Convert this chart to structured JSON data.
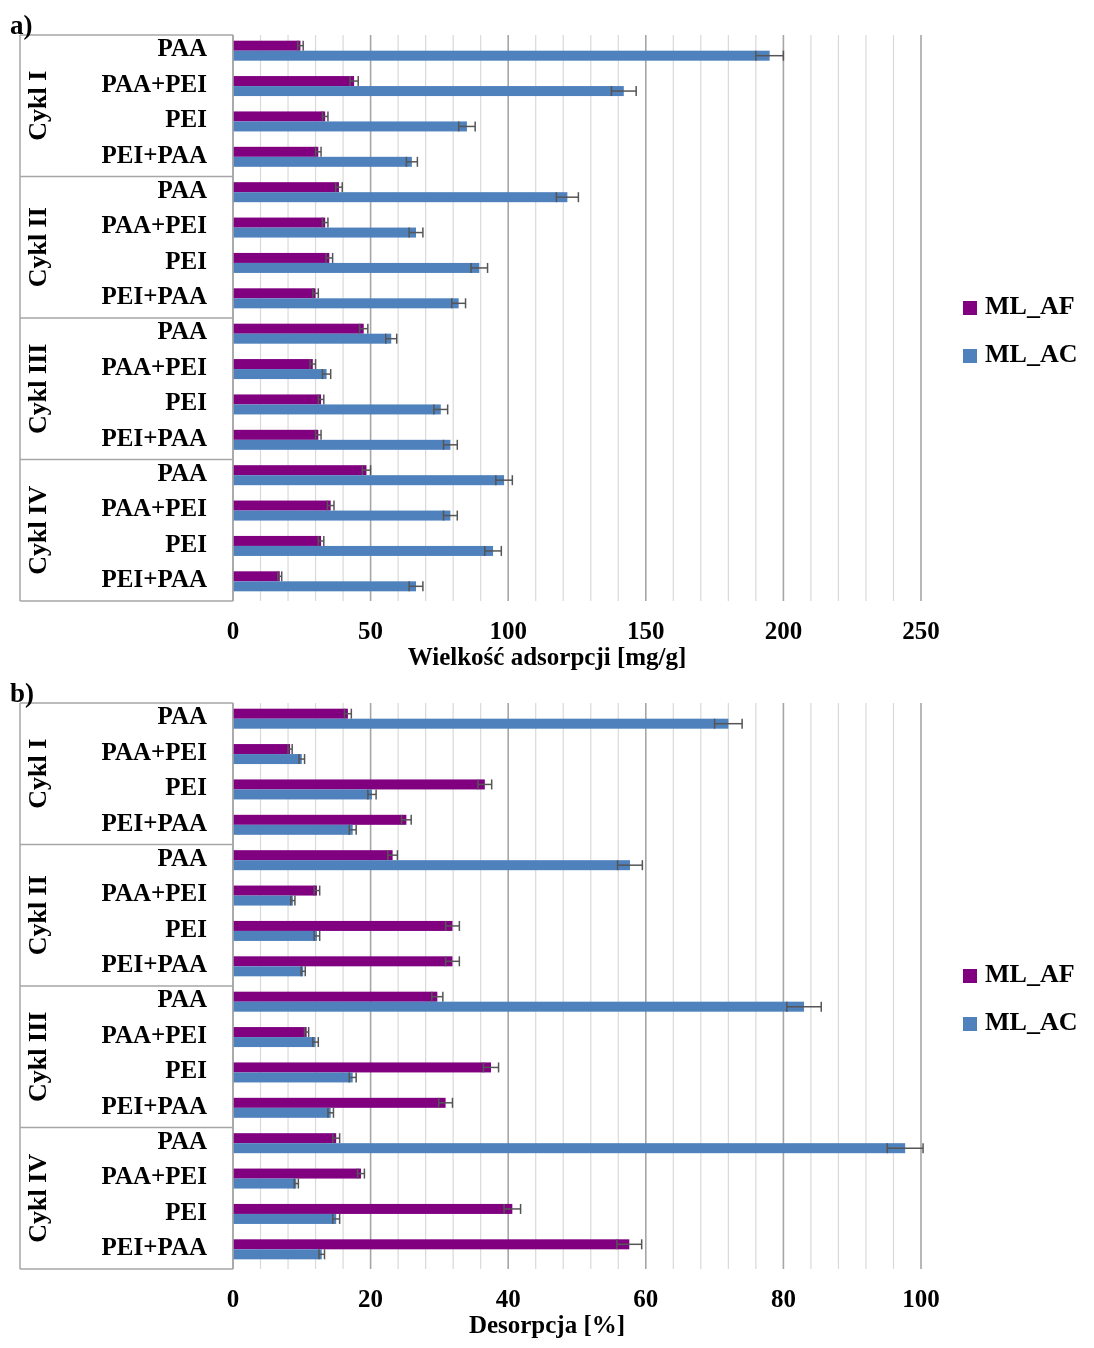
{
  "chart_data": [
    {
      "type": "bar",
      "orientation": "horizontal",
      "title": "a)",
      "xlabel": "Wielkość adsorpcji [mg/g]",
      "categories": [
        "PAA",
        "PAA+PEI",
        "PEI",
        "PEI+PAA",
        "PAA",
        "PAA+PEI",
        "PEI",
        "PEI+PAA",
        "PAA",
        "PAA+PEI",
        "PEI",
        "PEI+PAA",
        "PAA",
        "PAA+PEI",
        "PEI",
        "PEI+PAA"
      ],
      "annotations": [
        "Cykl I",
        "Cykl II",
        "Cykl III",
        "Cykl IV"
      ],
      "series": [
        {
          "name": "ML_AF",
          "color": "#800080",
          "values": [
            24.5,
            44,
            33.5,
            31,
            38.5,
            33.5,
            35,
            30,
            47.5,
            29,
            32,
            31,
            48.5,
            35.5,
            32,
            17
          ],
          "errors": [
            1,
            1.5,
            1,
            1,
            1.2,
            1,
            1.2,
            1,
            1.5,
            1,
            1,
            1,
            1.5,
            1.2,
            1,
            0.7
          ]
        },
        {
          "name": "ML_AC",
          "color": "#4f81bd",
          "values": [
            195,
            142,
            85,
            65,
            121.5,
            66.5,
            89.5,
            82,
            57.5,
            34,
            75.5,
            79,
            98.5,
            79,
            94.5,
            66.5
          ],
          "errors": [
            5,
            4.5,
            3,
            2,
            4,
            2.5,
            3,
            2.5,
            2,
            1.5,
            2.5,
            2.5,
            3,
            2.5,
            3,
            2.5
          ]
        }
      ],
      "xlim": [
        0,
        250
      ],
      "xticks": [
        0,
        {
          "value": 10,
          "label": null
        },
        {
          "value": 20,
          "label": null
        },
        {
          "value": 30,
          "label": null
        },
        {
          "value": 40,
          "label": null
        },
        50,
        {
          "value": 60,
          "label": null
        },
        {
          "value": 70,
          "label": null
        },
        {
          "value": 80,
          "label": null
        },
        {
          "value": 90,
          "label": null
        },
        100,
        {
          "value": 110,
          "label": null
        },
        {
          "value": 120,
          "label": null
        },
        {
          "value": 130,
          "label": null
        },
        {
          "value": 140,
          "label": null
        },
        150,
        {
          "value": 160,
          "label": null
        },
        {
          "value": 170,
          "label": null
        },
        {
          "value": 180,
          "label": null
        },
        {
          "value": 190,
          "label": null
        },
        200,
        {
          "value": 210,
          "label": null
        },
        {
          "value": 220,
          "label": null
        },
        {
          "value": 230,
          "label": null
        },
        {
          "value": 240,
          "label": null
        },
        250
      ],
      "grid": "x",
      "legend": "right"
    },
    {
      "type": "bar",
      "orientation": "horizontal",
      "title": "b)",
      "xlabel": "Desorpcja [%]",
      "categories": [
        "PAA",
        "PAA+PEI",
        "PEI",
        "PEI+PAA",
        "PAA",
        "PAA+PEI",
        "PEI",
        "PEI+PAA",
        "PAA",
        "PAA+PEI",
        "PEI",
        "PEI+PAA",
        "PAA",
        "PAA+PEI",
        "PEI",
        "PEI+PAA"
      ],
      "annotations": [
        "Cykl I",
        "Cykl II",
        "Cykl III",
        "Cykl IV"
      ],
      "series": [
        {
          "name": "ML_AF",
          "color": "#800080",
          "values": [
            16.7,
            8.3,
            36.6,
            25.2,
            23.2,
            12.2,
            31.9,
            31.9,
            29.7,
            10.7,
            37.5,
            30.9,
            15,
            18.6,
            40.6,
            57.6
          ],
          "errors": [
            0.5,
            0.3,
            1,
            0.7,
            0.7,
            0.4,
            1,
            1,
            0.8,
            0.3,
            1.1,
            1,
            0.5,
            0.5,
            1.2,
            1.8
          ]
        },
        {
          "name": "ML_AC",
          "color": "#4f81bd",
          "values": [
            72,
            10,
            20.2,
            17.4,
            57.7,
            8.7,
            12.2,
            10.2,
            83,
            12,
            17.4,
            14.2,
            97.7,
            9.2,
            15,
            12.9
          ],
          "errors": [
            2,
            0.4,
            0.6,
            0.5,
            1.8,
            0.3,
            0.4,
            0.3,
            2.5,
            0.4,
            0.5,
            0.4,
            2.6,
            0.3,
            0.5,
            0.4
          ]
        }
      ],
      "xlim": [
        0,
        100
      ],
      "xticks": [
        0,
        {
          "value": 4,
          "label": null
        },
        {
          "value": 8,
          "label": null
        },
        {
          "value": 12,
          "label": null
        },
        {
          "value": 16,
          "label": null
        },
        20,
        {
          "value": 24,
          "label": null
        },
        {
          "value": 28,
          "label": null
        },
        {
          "value": 32,
          "label": null
        },
        {
          "value": 36,
          "label": null
        },
        40,
        {
          "value": 44,
          "label": null
        },
        {
          "value": 48,
          "label": null
        },
        {
          "value": 52,
          "label": null
        },
        {
          "value": 56,
          "label": null
        },
        60,
        {
          "value": 64,
          "label": null
        },
        {
          "value": 68,
          "label": null
        },
        {
          "value": 72,
          "label": null
        },
        {
          "value": 76,
          "label": null
        },
        80,
        {
          "value": 84,
          "label": null
        },
        {
          "value": 88,
          "label": null
        },
        {
          "value": 92,
          "label": null
        },
        {
          "value": 96,
          "label": null
        },
        100
      ],
      "grid": "x",
      "legend": "right"
    }
  ]
}
